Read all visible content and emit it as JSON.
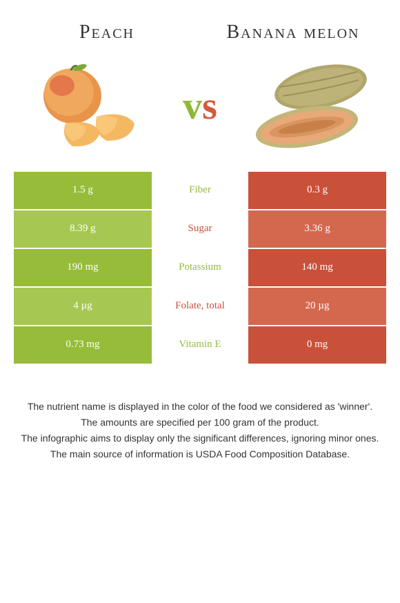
{
  "left_food": {
    "name": "Peach",
    "color": "#96bc3a",
    "color_light": "#a6c852"
  },
  "right_food": {
    "name": "Banana melon",
    "color": "#c9513a",
    "color_light": "#d4684f"
  },
  "vs_label": "vs",
  "nutrients": [
    {
      "label": "Fiber",
      "left": "1.5 g",
      "right": "0.3 g",
      "winner": "left"
    },
    {
      "label": "Sugar",
      "left": "8.39 g",
      "right": "3.36 g",
      "winner": "right"
    },
    {
      "label": "Potassium",
      "left": "190 mg",
      "right": "140 mg",
      "winner": "left"
    },
    {
      "label": "Folate, total",
      "left": "4 µg",
      "right": "20 µg",
      "winner": "right"
    },
    {
      "label": "Vitamin E",
      "left": "0.73 mg",
      "right": "0 mg",
      "winner": "left"
    }
  ],
  "footer_lines": [
    "The nutrient name is displayed in the color of the food we considered as 'winner'.",
    "The amounts are specified per 100 gram of the product.",
    "The infographic aims to display only the significant differences, ignoring minor ones.",
    "The main source of information is USDA Food Composition Database."
  ]
}
